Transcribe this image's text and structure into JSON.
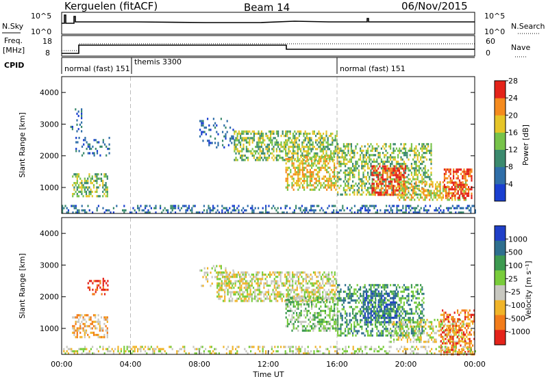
{
  "header": {
    "station": "Kerguelen (fitACF)",
    "beam": "Beam 14",
    "date": "06/Nov/2015"
  },
  "strip_labels": {
    "nsky": "N.Sky",
    "nsky_hi": "10^5",
    "nsky_lo": "10^0",
    "nsearch": "N.Search",
    "nsearch_hi": "10^5",
    "nsearch_lo": "10^0",
    "freq": "Freq.",
    "freq_unit": "[MHz]",
    "freq_hi": "18",
    "freq_lo": "8",
    "nave": "Nave",
    "nave_hi": "60",
    "nave_lo": "0",
    "cpid": "CPID"
  },
  "cpid_modes": [
    "normal (fast) 151",
    "themis 3300",
    "normal (fast) 151"
  ],
  "chart_data": [
    {
      "type": "heatmap",
      "name": "power",
      "ylabel": "Slant Range [km]",
      "yticks": [
        "1000",
        "2000",
        "3000",
        "4000"
      ],
      "ylim": [
        180,
        4500
      ],
      "xlim": [
        0,
        24
      ],
      "colorbar_label": "Power [dB]",
      "colorbar_ticks": [
        "4",
        "8",
        "12",
        "16",
        "20",
        "24",
        "28"
      ],
      "colorbar_colors": [
        "#1a3fd0",
        "#2f6ea8",
        "#3b8a6e",
        "#77c34a",
        "#e6c528",
        "#f58b1e",
        "#e4231a"
      ],
      "scatter_regions": [
        {
          "t0": 0.6,
          "t1": 2.7,
          "r0": 750,
          "r1": 1450,
          "level": 3,
          "density": 0.5
        },
        {
          "t0": 0.8,
          "t1": 2.8,
          "r0": 2000,
          "r1": 2600,
          "level": 1,
          "density": 0.25
        },
        {
          "t0": 0.5,
          "t1": 1.2,
          "r0": 2800,
          "r1": 3500,
          "level": 1,
          "density": 0.2
        },
        {
          "t0": 8.0,
          "t1": 10.0,
          "r0": 2300,
          "r1": 3200,
          "level": 1,
          "density": 0.2
        },
        {
          "t0": 10.0,
          "t1": 16.0,
          "r0": 1900,
          "r1": 2800,
          "level": 3,
          "density": 0.55
        },
        {
          "t0": 13.0,
          "t1": 16.0,
          "r0": 900,
          "r1": 2000,
          "level": 4,
          "density": 0.55
        },
        {
          "t0": 16.0,
          "t1": 21.5,
          "r0": 800,
          "r1": 2400,
          "level": 3,
          "density": 0.45
        },
        {
          "t0": 18.0,
          "t1": 20.0,
          "r0": 800,
          "r1": 1700,
          "level": 6,
          "density": 0.6
        },
        {
          "t0": 19.5,
          "t1": 23.5,
          "r0": 600,
          "r1": 1200,
          "level": 4,
          "density": 0.4
        },
        {
          "t0": 22.2,
          "t1": 23.8,
          "r0": 700,
          "r1": 1600,
          "level": 6,
          "density": 0.55
        },
        {
          "t0": 0.0,
          "t1": 24.0,
          "r0": 200,
          "r1": 450,
          "level": 1,
          "density": 0.35
        }
      ]
    },
    {
      "type": "heatmap",
      "name": "velocity",
      "xlabel": "Time UT",
      "ylabel": "Slant Range [km]",
      "xticks": [
        "00:00",
        "04:00",
        "08:00",
        "12:00",
        "16:00",
        "20:00",
        "00:00"
      ],
      "yticks": [
        "1000",
        "2000",
        "3000",
        "4000"
      ],
      "ylim": [
        180,
        4500
      ],
      "xlim": [
        0,
        24
      ],
      "colorbar_label": "Velocity [m s⁻¹]",
      "colorbar_ticks": [
        "1000",
        "500",
        "100",
        "25",
        "-25",
        "-100",
        "-500",
        "-1000"
      ],
      "colorbar_colors": [
        "#1f3fc8",
        "#2e6f8e",
        "#3d9a50",
        "#79cc3b",
        "#c8c8c0",
        "#f0b429",
        "#f27c1a",
        "#e4231a"
      ],
      "scatter_regions": [
        {
          "t0": 0.6,
          "t1": 2.7,
          "r0": 750,
          "r1": 1450,
          "level": 5,
          "density": 0.5
        },
        {
          "t0": 1.5,
          "t1": 2.7,
          "r0": 2100,
          "r1": 2600,
          "level": 7,
          "density": 0.3
        },
        {
          "t0": 8.0,
          "t1": 10.0,
          "r0": 2300,
          "r1": 3000,
          "level": 4,
          "density": 0.25
        },
        {
          "t0": 9.0,
          "t1": 16.0,
          "r0": 1900,
          "r1": 2800,
          "level": 4,
          "density": 0.55
        },
        {
          "t0": 13.0,
          "t1": 16.0,
          "r0": 900,
          "r1": 2000,
          "level": 3,
          "density": 0.5
        },
        {
          "t0": 16.0,
          "t1": 21.0,
          "r0": 800,
          "r1": 2400,
          "level": 2,
          "density": 0.45
        },
        {
          "t0": 17.5,
          "t1": 19.5,
          "r0": 1200,
          "r1": 2200,
          "level": 1,
          "density": 0.5
        },
        {
          "t0": 19.0,
          "t1": 23.5,
          "r0": 600,
          "r1": 1300,
          "level": 4,
          "density": 0.4
        },
        {
          "t0": 22.0,
          "t1": 24.0,
          "r0": 200,
          "r1": 1600,
          "level": 6,
          "density": 0.45
        },
        {
          "t0": 0.0,
          "t1": 24.0,
          "r0": 200,
          "r1": 450,
          "level": 4,
          "density": 0.3
        }
      ]
    }
  ]
}
